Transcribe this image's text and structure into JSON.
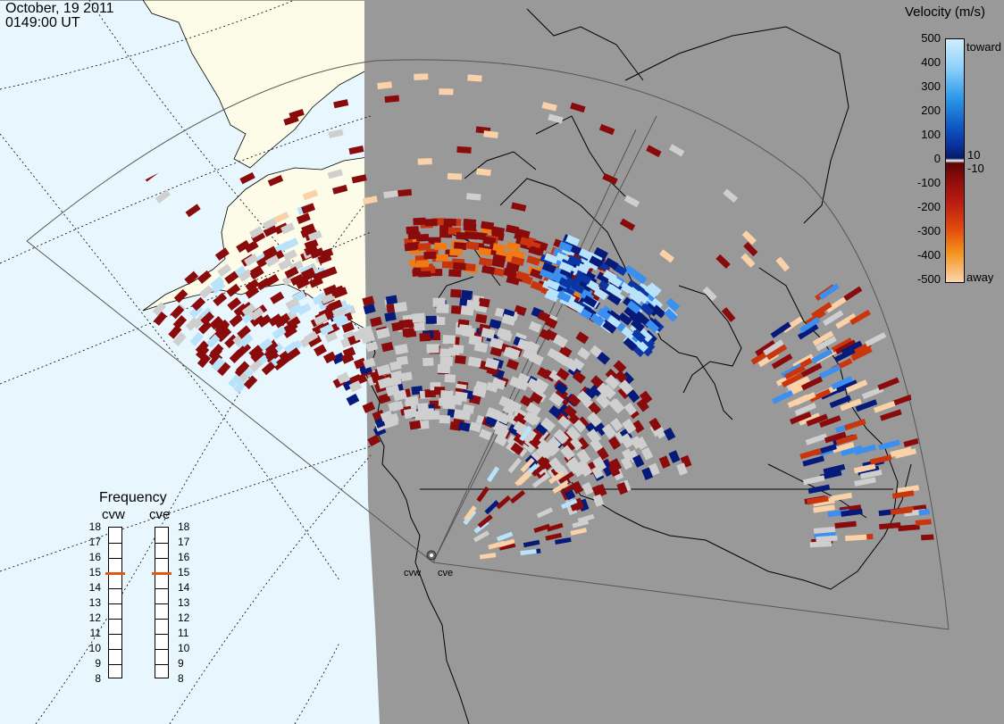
{
  "header": {
    "date": "October, 19 2011",
    "time": "0149:00 UT"
  },
  "colors": {
    "ocean": "#e8f6fe",
    "land_lit": "#fcfce8",
    "night": "#999999",
    "gray_scatter": "#cfcfcf",
    "toward_light": "#b9e2fb",
    "toward_mid": "#3a8ff0",
    "toward_dark": "#0b35a3",
    "toward_navy": "#061a7a",
    "away_dark": "#8a0b0b",
    "away_mid": "#c9360e",
    "away_orange": "#f07a14",
    "away_light": "#fbd1a8",
    "freq_marker": "#e05a10"
  },
  "velocity_scale": {
    "title": "Velocity (m/s)",
    "ticks": [
      "500",
      "400",
      "300",
      "200",
      "100",
      "0",
      "-100",
      "-200",
      "-300",
      "-400",
      "-500"
    ],
    "inner_ticks": [
      "10",
      "-10"
    ],
    "toward_label": "toward",
    "away_label": "away"
  },
  "frequency_panel": {
    "title": "Frequency",
    "radars": [
      {
        "name": "cvw",
        "value": 15
      },
      {
        "name": "cve",
        "value": 15
      }
    ],
    "ticks": [
      "18",
      "17",
      "16",
      "15",
      "14",
      "13",
      "12",
      "11",
      "10",
      "9",
      "8"
    ]
  },
  "sites": [
    "cvw",
    "cve"
  ]
}
